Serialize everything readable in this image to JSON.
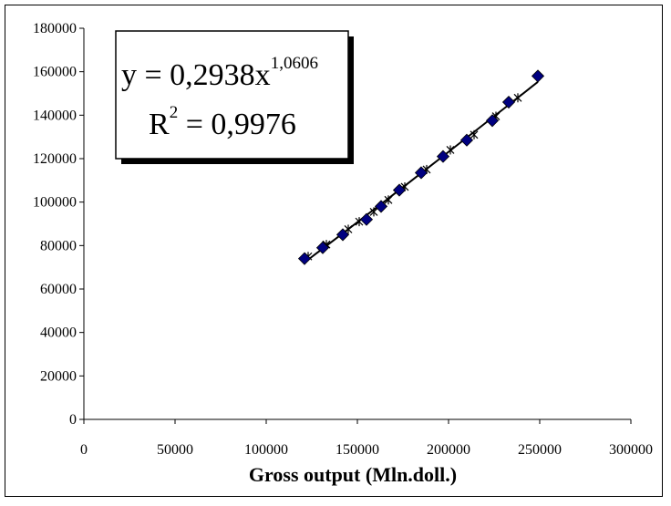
{
  "chart_data": {
    "type": "scatter",
    "title": "",
    "xlabel": "Gross output (Mln.doll.)",
    "ylabel": "",
    "xlim": [
      0,
      300000
    ],
    "ylim": [
      0,
      180000
    ],
    "x_ticks": [
      "0",
      "50000",
      "100000",
      "150000",
      "200000",
      "250000",
      "300000"
    ],
    "y_ticks": [
      "0",
      "20000",
      "40000",
      "60000",
      "80000",
      "100000",
      "120000",
      "140000",
      "160000",
      "180000"
    ],
    "grid": false,
    "marker_color": "#000080",
    "trend_color": "#000000",
    "series": [
      {
        "marker": "diamond",
        "points": [
          {
            "x": 121000,
            "y": 74000
          },
          {
            "x": 131000,
            "y": 79000
          },
          {
            "x": 142000,
            "y": 85000
          },
          {
            "x": 155000,
            "y": 92000
          },
          {
            "x": 163000,
            "y": 98000
          },
          {
            "x": 173000,
            "y": 105500
          },
          {
            "x": 185000,
            "y": 113500
          },
          {
            "x": 197000,
            "y": 121000
          },
          {
            "x": 210000,
            "y": 128500
          },
          {
            "x": 224000,
            "y": 137500
          },
          {
            "x": 233000,
            "y": 146000
          },
          {
            "x": 249000,
            "y": 158000
          }
        ]
      },
      {
        "marker": "star",
        "points": [
          {
            "x": 123000,
            "y": 75000
          },
          {
            "x": 133000,
            "y": 80500
          },
          {
            "x": 145000,
            "y": 87500
          },
          {
            "x": 151000,
            "y": 91000
          },
          {
            "x": 159000,
            "y": 95500
          },
          {
            "x": 167000,
            "y": 101000
          },
          {
            "x": 176000,
            "y": 107000
          },
          {
            "x": 188000,
            "y": 115000
          },
          {
            "x": 201000,
            "y": 124000
          },
          {
            "x": 214000,
            "y": 131000
          },
          {
            "x": 226000,
            "y": 139500
          },
          {
            "x": 238000,
            "y": 148000
          }
        ]
      }
    ],
    "trendline": {
      "type": "power",
      "a": 0.2938,
      "b": 1.0606,
      "x_from": 121000,
      "x_to": 249000
    },
    "annotation": {
      "equation_prefix": "y = 0,2938x",
      "equation_exponent": "1,0606",
      "r2_prefix": "R",
      "r2_exponent": "2",
      "r2_value": " = 0,9976"
    }
  }
}
